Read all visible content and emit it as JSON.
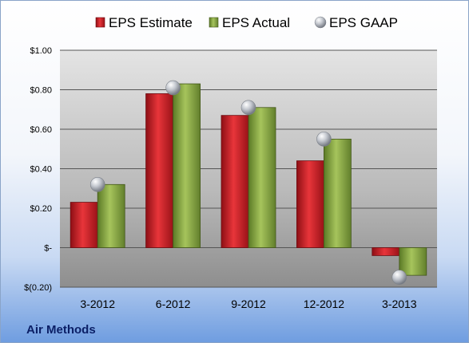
{
  "company_label": "Air Methods",
  "chart_data": {
    "type": "bar",
    "categories": [
      "3-2012",
      "6-2012",
      "9-2012",
      "12-2012",
      "3-2013"
    ],
    "series": [
      {
        "name": "EPS Estimate",
        "values": [
          0.23,
          0.78,
          0.67,
          0.44,
          -0.04
        ],
        "color": "#c8252b"
      },
      {
        "name": "EPS Actual",
        "values": [
          0.32,
          0.83,
          0.71,
          0.55,
          -0.14
        ],
        "color": "#8aaa48"
      },
      {
        "name": "EPS GAAP",
        "values": [
          0.32,
          0.81,
          0.71,
          0.55,
          -0.15
        ],
        "color": "#b8bcc4",
        "marker": "sphere"
      }
    ],
    "ylim": [
      -0.2,
      1.0
    ],
    "yticks": [
      -0.2,
      0.0,
      0.2,
      0.4,
      0.6,
      0.8,
      1.0
    ],
    "ytick_labels": [
      "$(0.20)",
      "$-",
      "$0.20",
      "$0.40",
      "$0.60",
      "$0.80",
      "$1.00"
    ],
    "grid": true,
    "legend_position": "top-center"
  }
}
